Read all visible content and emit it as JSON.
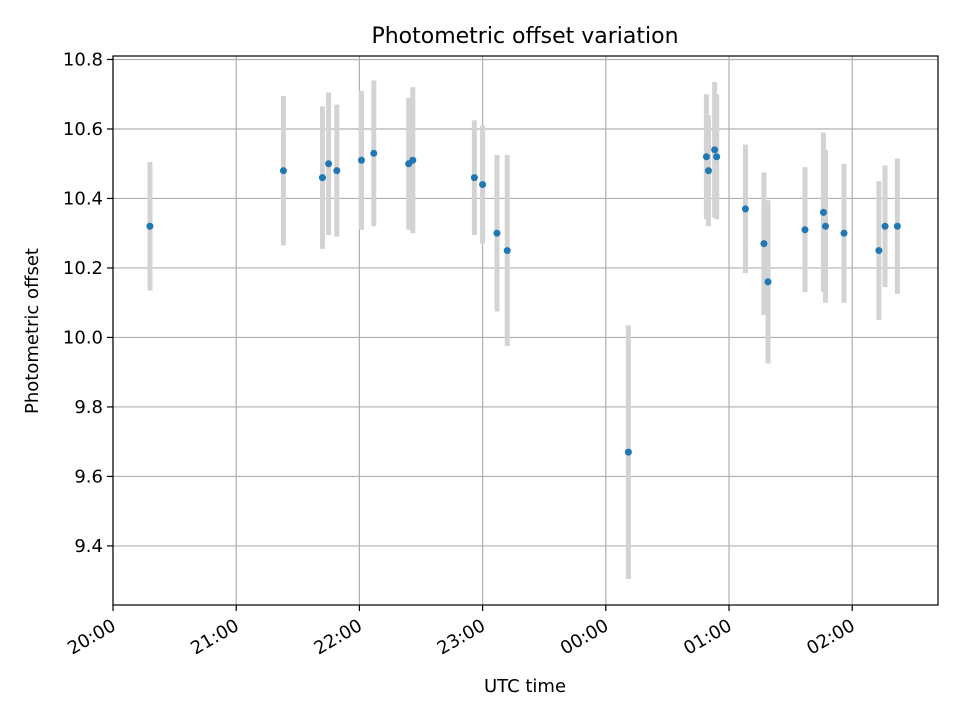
{
  "chart_data": {
    "type": "scatter",
    "title": "Photometric offset variation",
    "xlabel": "UTC time",
    "ylabel": "Photometric offset",
    "x_ticks": [
      "20:00",
      "21:00",
      "22:00",
      "23:00",
      "00:00",
      "01:00",
      "02:00"
    ],
    "y_ticks": [
      "9.4",
      "9.6",
      "9.8",
      "10.0",
      "10.2",
      "10.4",
      "10.6",
      "10.8"
    ],
    "xlim": [
      "20:00",
      "02:41"
    ],
    "ylim": [
      9.23,
      10.81
    ],
    "grid": true,
    "point_color": "#1f77b4",
    "errorbar_color": "#d3d3d3",
    "series": [
      {
        "points": [
          {
            "x": "20:18",
            "y": 10.32,
            "err": 0.185
          },
          {
            "x": "21:23",
            "y": 10.48,
            "err": 0.215
          },
          {
            "x": "21:42",
            "y": 10.46,
            "err": 0.205
          },
          {
            "x": "21:45",
            "y": 10.5,
            "err": 0.205
          },
          {
            "x": "21:49",
            "y": 10.48,
            "err": 0.19
          },
          {
            "x": "22:01",
            "y": 10.51,
            "err": 0.2
          },
          {
            "x": "22:07",
            "y": 10.53,
            "err": 0.21
          },
          {
            "x": "22:24",
            "y": 10.5,
            "err": 0.19
          },
          {
            "x": "22:26",
            "y": 10.51,
            "err": 0.21
          },
          {
            "x": "22:56",
            "y": 10.46,
            "err": 0.165
          },
          {
            "x": "23:00",
            "y": 10.44,
            "err": 0.17
          },
          {
            "x": "23:07",
            "y": 10.3,
            "err": 0.225
          },
          {
            "x": "23:12",
            "y": 10.25,
            "err": 0.275
          },
          {
            "x": "00:11",
            "y": 9.67,
            "err": 0.365
          },
          {
            "x": "00:49",
            "y": 10.52,
            "err": 0.18
          },
          {
            "x": "00:50",
            "y": 10.48,
            "err": 0.16
          },
          {
            "x": "00:53",
            "y": 10.54,
            "err": 0.195
          },
          {
            "x": "00:54",
            "y": 10.52,
            "err": 0.18
          },
          {
            "x": "01:08",
            "y": 10.37,
            "err": 0.185
          },
          {
            "x": "01:17",
            "y": 10.27,
            "err": 0.205
          },
          {
            "x": "01:19",
            "y": 10.16,
            "err": 0.235
          },
          {
            "x": "01:37",
            "y": 10.31,
            "err": 0.18
          },
          {
            "x": "01:46",
            "y": 10.36,
            "err": 0.23
          },
          {
            "x": "01:47",
            "y": 10.32,
            "err": 0.22
          },
          {
            "x": "01:56",
            "y": 10.3,
            "err": 0.2
          },
          {
            "x": "02:13",
            "y": 10.25,
            "err": 0.2
          },
          {
            "x": "02:16",
            "y": 10.32,
            "err": 0.175
          },
          {
            "x": "02:22",
            "y": 10.32,
            "err": 0.195
          }
        ]
      }
    ]
  }
}
